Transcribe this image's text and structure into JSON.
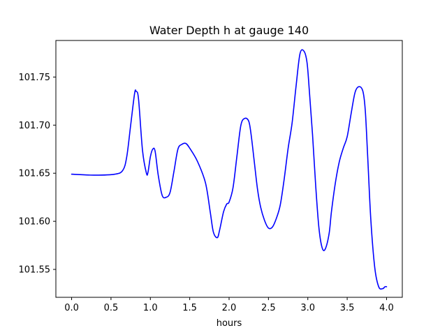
{
  "chart_data": {
    "type": "line",
    "title": "Water Depth h at gauge 140",
    "xlabel": "hours",
    "ylabel": "",
    "xlim": [
      -0.2,
      4.2
    ],
    "ylim": [
      101.521,
      101.788
    ],
    "grid": false,
    "x_ticks": [
      0.0,
      0.5,
      1.0,
      1.5,
      2.0,
      2.5,
      3.0,
      3.5,
      4.0
    ],
    "x_tick_labels": [
      "0.0",
      "0.5",
      "1.0",
      "1.5",
      "2.0",
      "2.5",
      "3.0",
      "3.5",
      "4.0"
    ],
    "y_ticks": [
      101.55,
      101.6,
      101.65,
      101.7,
      101.75
    ],
    "y_tick_labels": [
      "101.55",
      "101.60",
      "101.65",
      "101.70",
      "101.75"
    ],
    "series": [
      {
        "color": "#0000ff",
        "x": [
          0.0,
          0.3,
          0.55,
          0.65,
          0.7,
          0.75,
          0.8,
          0.82,
          0.85,
          0.9,
          0.95,
          0.97,
          1.0,
          1.03,
          1.06,
          1.1,
          1.15,
          1.2,
          1.25,
          1.3,
          1.35,
          1.4,
          1.45,
          1.5,
          1.6,
          1.7,
          1.76,
          1.8,
          1.85,
          1.88,
          1.93,
          1.97,
          2.0,
          2.05,
          2.1,
          2.15,
          2.2,
          2.25,
          2.28,
          2.32,
          2.36,
          2.4,
          2.45,
          2.5,
          2.55,
          2.6,
          2.65,
          2.7,
          2.75,
          2.8,
          2.85,
          2.9,
          2.95,
          2.99,
          3.02,
          3.06,
          3.1,
          3.14,
          3.18,
          3.22,
          3.27,
          3.3,
          3.35,
          3.4,
          3.45,
          3.5,
          3.55,
          3.6,
          3.65,
          3.7,
          3.73,
          3.76,
          3.8,
          3.85,
          3.9,
          3.95,
          3.98,
          4.0
        ],
        "y": [
          101.649,
          101.648,
          101.649,
          101.653,
          101.667,
          101.7,
          101.733,
          101.735,
          101.727,
          101.674,
          101.65,
          101.651,
          101.667,
          101.675,
          101.673,
          101.648,
          101.627,
          101.625,
          101.63,
          101.652,
          101.675,
          101.68,
          101.681,
          101.676,
          101.662,
          101.64,
          101.61,
          101.589,
          101.583,
          101.591,
          101.61,
          101.618,
          101.62,
          101.635,
          101.668,
          101.7,
          101.707,
          101.704,
          101.69,
          101.662,
          101.634,
          101.615,
          101.601,
          101.593,
          101.594,
          101.603,
          101.617,
          101.644,
          101.676,
          101.702,
          101.74,
          101.774,
          101.777,
          101.765,
          101.735,
          101.69,
          101.637,
          101.594,
          101.573,
          101.571,
          101.587,
          101.61,
          101.64,
          101.662,
          101.676,
          101.688,
          101.712,
          101.734,
          101.74,
          101.735,
          101.715,
          101.668,
          101.602,
          101.552,
          101.532,
          101.53,
          101.532,
          101.532
        ]
      }
    ]
  }
}
